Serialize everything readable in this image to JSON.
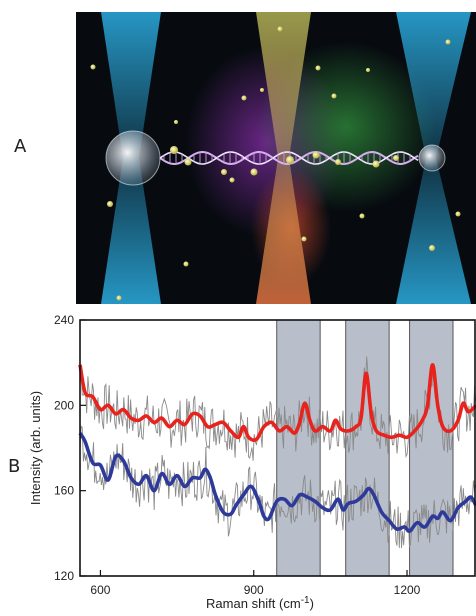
{
  "panels": {
    "top_label": "A",
    "bottom_label": "B"
  },
  "illustration": {
    "description_icons": [
      "optical-trap-beam-icon",
      "dna-helix-icon",
      "trapped-bead-icon",
      "nanoparticle-icon"
    ],
    "colors": {
      "background": "#070b10",
      "beam": "#2aa6d8",
      "center_beam": "#c8c860",
      "helix": "#c9a0e0",
      "bead": "#d8e0e8",
      "particle": "#e6e46a"
    }
  },
  "chart_data": {
    "type": "line",
    "title": "",
    "xlabel": "Raman shift (cm",
    "xlabel_sup": "-1",
    "xlabel_close": ")",
    "ylabel": "Intensity (arb. units)",
    "xlim": [
      560,
      1335
    ],
    "ylim": [
      120,
      240
    ],
    "xticks": [
      600,
      900,
      1200
    ],
    "yticks": [
      120,
      160,
      200,
      240
    ],
    "grid": false,
    "legend": "none",
    "shaded_bands": [
      [
        945,
        1030
      ],
      [
        1080,
        1165
      ],
      [
        1205,
        1290
      ]
    ],
    "series": [
      {
        "color": "#e8231e",
        "points": [
          [
            560,
            219
          ],
          [
            570,
            206
          ],
          [
            585,
            204
          ],
          [
            600,
            198
          ],
          [
            615,
            200
          ],
          [
            630,
            196
          ],
          [
            645,
            198
          ],
          [
            660,
            194
          ],
          [
            675,
            193
          ],
          [
            690,
            195
          ],
          [
            705,
            192
          ],
          [
            720,
            194
          ],
          [
            735,
            190
          ],
          [
            750,
            193
          ],
          [
            765,
            191
          ],
          [
            780,
            196
          ],
          [
            795,
            195
          ],
          [
            810,
            190
          ],
          [
            825,
            191
          ],
          [
            840,
            192
          ],
          [
            855,
            188
          ],
          [
            870,
            185
          ],
          [
            880,
            190
          ],
          [
            890,
            185
          ],
          [
            905,
            184
          ],
          [
            920,
            190
          ],
          [
            935,
            192
          ],
          [
            950,
            188
          ],
          [
            965,
            190
          ],
          [
            980,
            187
          ],
          [
            990,
            192
          ],
          [
            1000,
            201
          ],
          [
            1010,
            193
          ],
          [
            1020,
            188
          ],
          [
            1035,
            190
          ],
          [
            1050,
            188
          ],
          [
            1060,
            193
          ],
          [
            1070,
            189
          ],
          [
            1085,
            188
          ],
          [
            1100,
            190
          ],
          [
            1110,
            194
          ],
          [
            1120,
            215
          ],
          [
            1130,
            196
          ],
          [
            1140,
            188
          ],
          [
            1155,
            186
          ],
          [
            1170,
            185
          ],
          [
            1185,
            186
          ],
          [
            1200,
            185
          ],
          [
            1215,
            188
          ],
          [
            1230,
            193
          ],
          [
            1240,
            200
          ],
          [
            1250,
            219
          ],
          [
            1260,
            200
          ],
          [
            1270,
            190
          ],
          [
            1285,
            188
          ],
          [
            1300,
            193
          ],
          [
            1310,
            201
          ],
          [
            1320,
            197
          ],
          [
            1335,
            200
          ]
        ]
      },
      {
        "color": "#2e3a9a",
        "points": [
          [
            560,
            187
          ],
          [
            570,
            183
          ],
          [
            585,
            173
          ],
          [
            600,
            172
          ],
          [
            615,
            165
          ],
          [
            630,
            176
          ],
          [
            645,
            174
          ],
          [
            660,
            166
          ],
          [
            675,
            163
          ],
          [
            690,
            167
          ],
          [
            705,
            160
          ],
          [
            720,
            168
          ],
          [
            735,
            163
          ],
          [
            750,
            167
          ],
          [
            765,
            162
          ],
          [
            780,
            166
          ],
          [
            795,
            166
          ],
          [
            805,
            170
          ],
          [
            815,
            166
          ],
          [
            825,
            158
          ],
          [
            840,
            150
          ],
          [
            855,
            149
          ],
          [
            865,
            153
          ],
          [
            880,
            158
          ],
          [
            895,
            162
          ],
          [
            910,
            155
          ],
          [
            920,
            148
          ],
          [
            930,
            147
          ],
          [
            945,
            155
          ],
          [
            960,
            156
          ],
          [
            975,
            153
          ],
          [
            990,
            158
          ],
          [
            1005,
            157
          ],
          [
            1020,
            155
          ],
          [
            1035,
            152
          ],
          [
            1050,
            151
          ],
          [
            1065,
            156
          ],
          [
            1075,
            151
          ],
          [
            1085,
            154
          ],
          [
            1100,
            155
          ],
          [
            1115,
            158
          ],
          [
            1125,
            161
          ],
          [
            1135,
            158
          ],
          [
            1150,
            150
          ],
          [
            1165,
            146
          ],
          [
            1180,
            142
          ],
          [
            1195,
            143
          ],
          [
            1205,
            141
          ],
          [
            1220,
            145
          ],
          [
            1235,
            143
          ],
          [
            1250,
            148
          ],
          [
            1260,
            147
          ],
          [
            1270,
            150
          ],
          [
            1285,
            146
          ],
          [
            1300,
            152
          ],
          [
            1315,
            155
          ],
          [
            1325,
            157
          ],
          [
            1335,
            153
          ]
        ]
      }
    ]
  }
}
